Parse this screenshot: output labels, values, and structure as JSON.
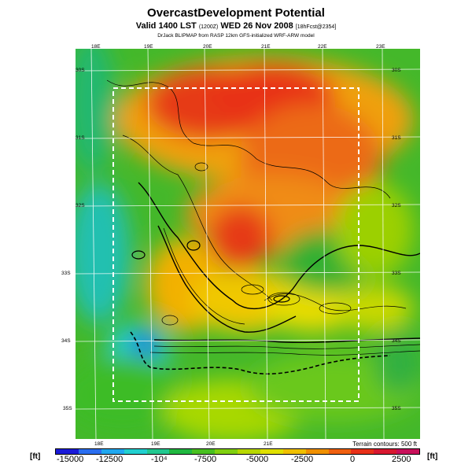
{
  "header": {
    "title": "OvercastDevelopment Potential",
    "valid_main": "Valid 1400 LST",
    "valid_code": "(1200Z)",
    "valid_date": "WED 26 Nov 2008",
    "valid_fcst": "[18hFcst@2354]",
    "credit": "DrJack BLIPMAP from RASP 12km GFS-initialized WRF-ARW model"
  },
  "map": {
    "lon_top": [
      "18E",
      "19E",
      "20E",
      "21E",
      "22E",
      "23E"
    ],
    "lon_bottom": [
      "18E",
      "19E",
      "20E",
      "21E"
    ],
    "lat_left": [
      "30S",
      "31S",
      "32S",
      "33S",
      "34S",
      "35S"
    ],
    "lat_right": [
      "30S",
      "31S",
      "32S",
      "33S",
      "34S",
      "35S"
    ]
  },
  "legend": {
    "terrain_note": "Terrain contours: 500 ft",
    "unit_left": "[ft]",
    "unit_right": "[ft]",
    "ticks": [
      "-15000",
      "-12500",
      "-10⁴",
      "-7500",
      "-5000",
      "-2500",
      "0",
      "2500"
    ],
    "colors": [
      "#1a1ad8",
      "#2a6ef0",
      "#20a8f0",
      "#22d0d0",
      "#22c890",
      "#20b840",
      "#48c020",
      "#80d010",
      "#b8d800",
      "#e0e000",
      "#f0c000",
      "#f09000",
      "#f06010",
      "#e83018",
      "#d81830",
      "#c8105a"
    ]
  }
}
